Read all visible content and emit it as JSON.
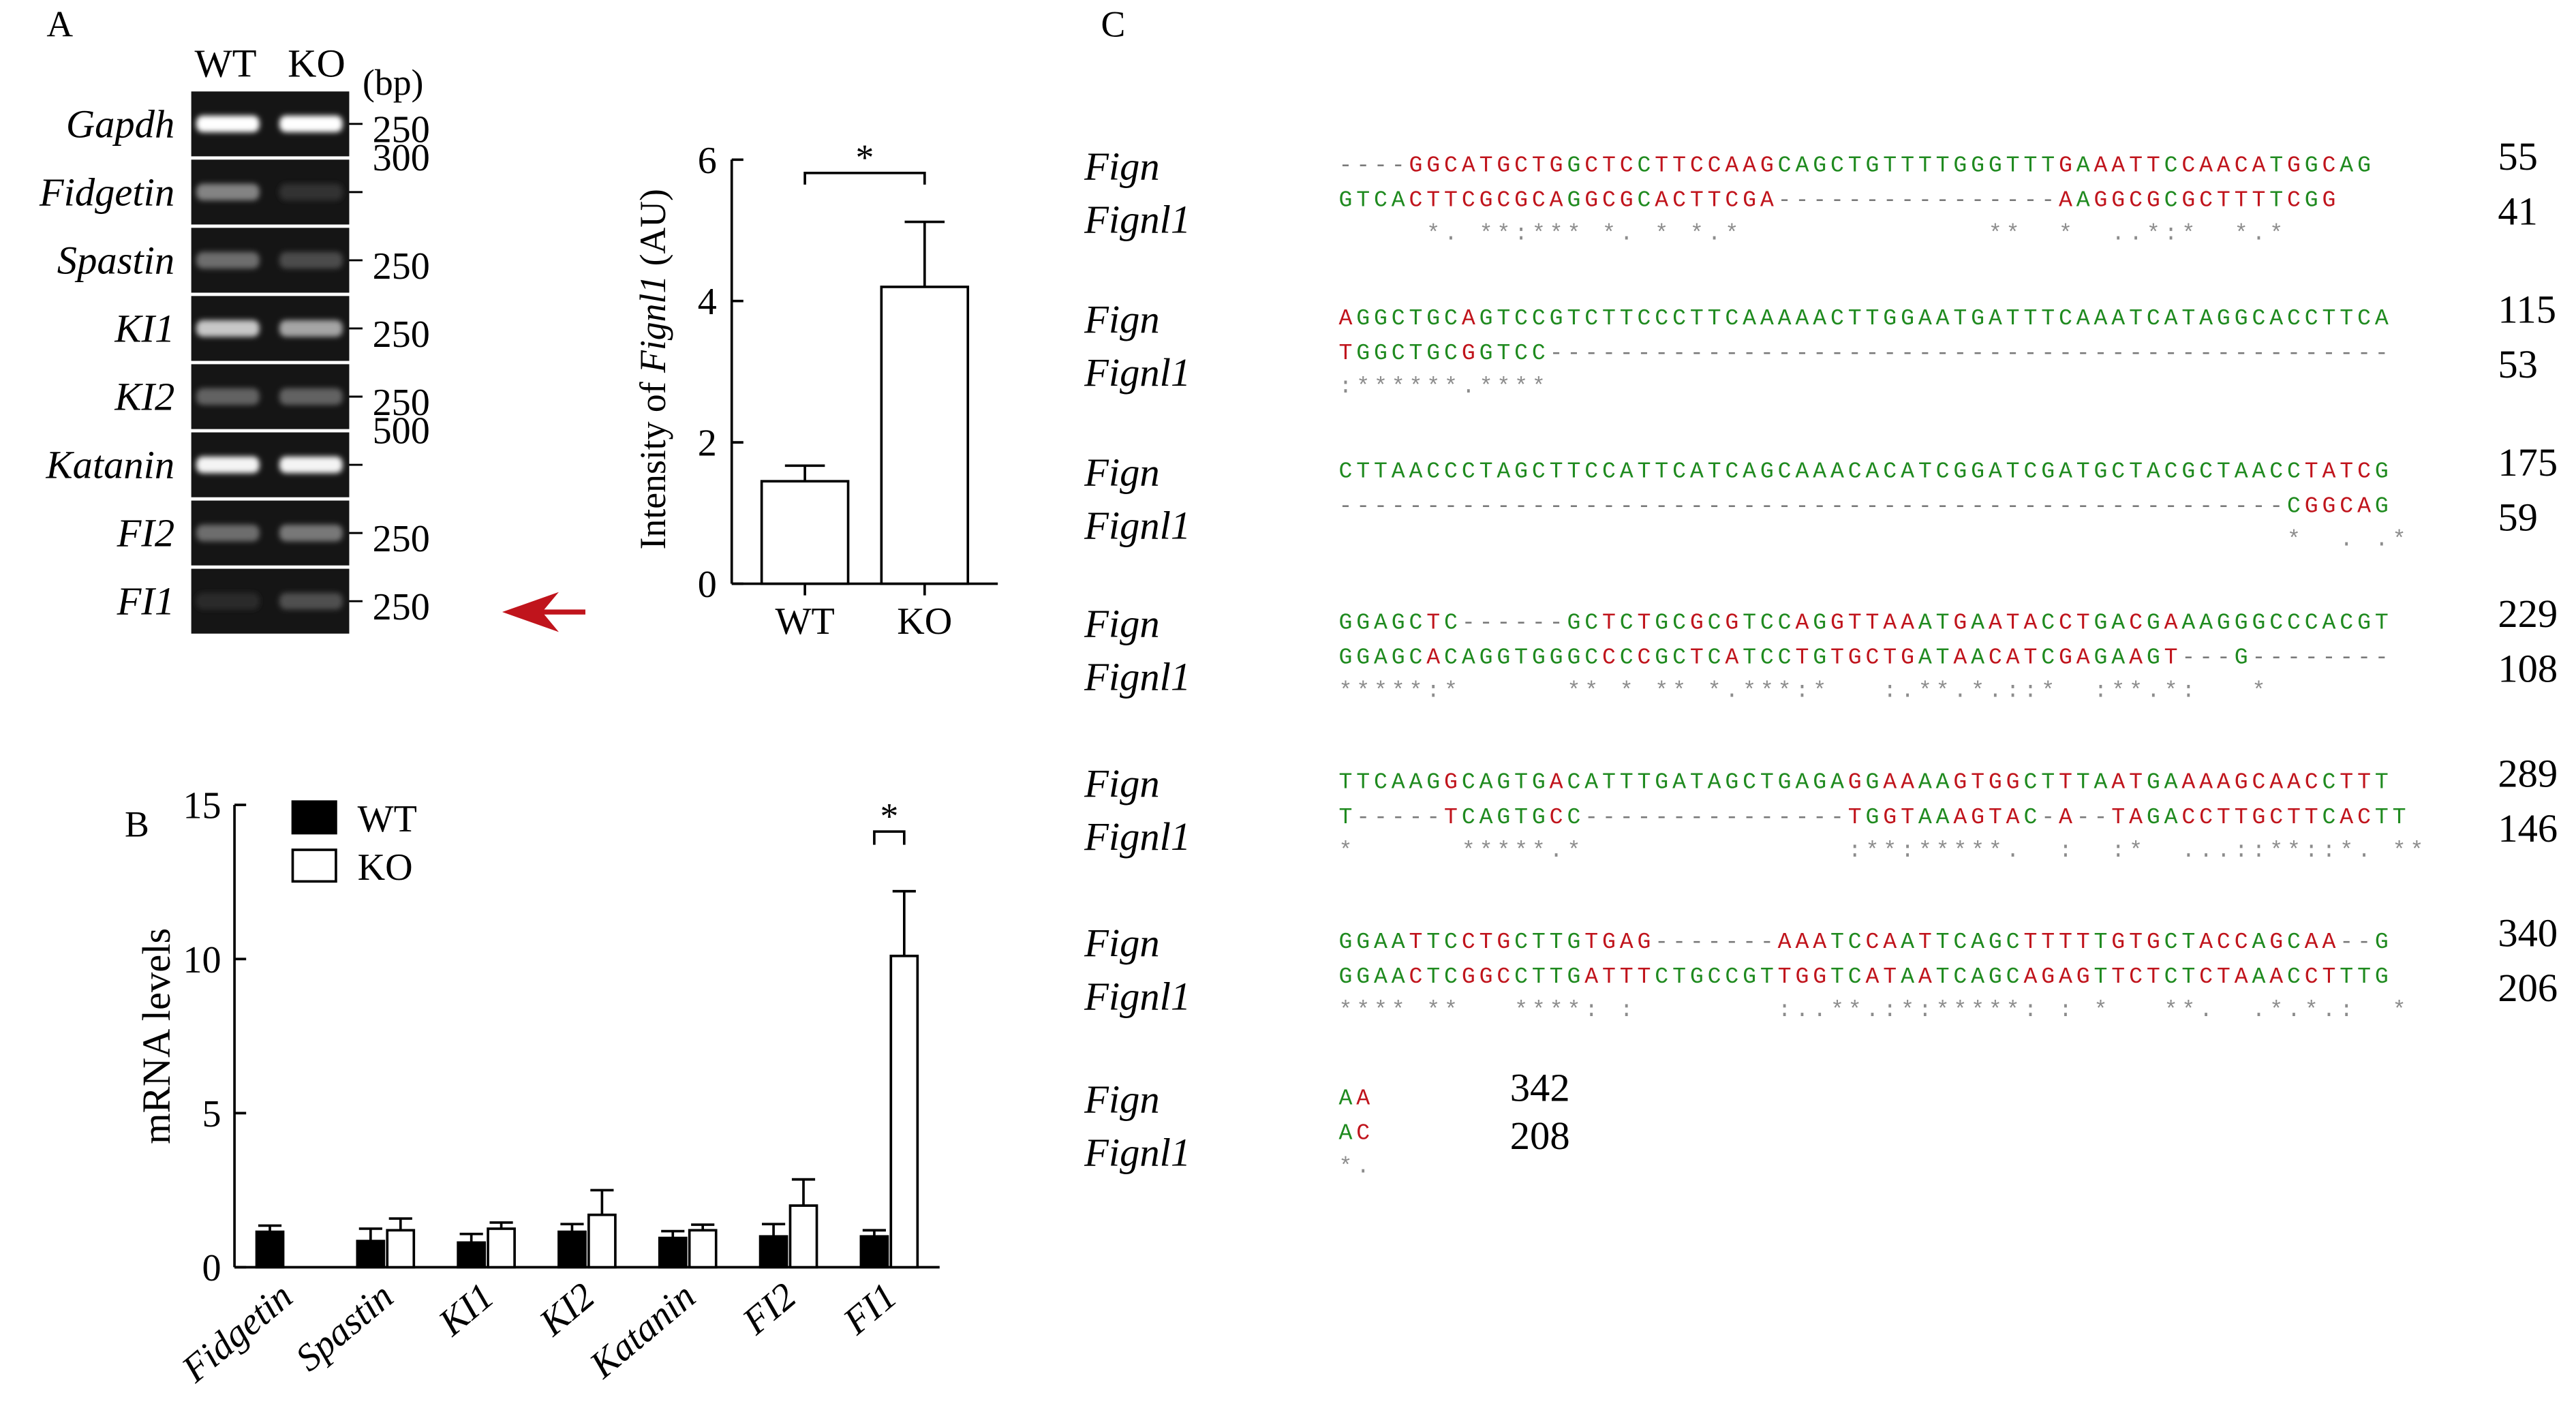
{
  "panels": {
    "a": "A",
    "b": "B",
    "c": "C"
  },
  "gel": {
    "col_labels": [
      "WT",
      "KO"
    ],
    "unit": "(bp)",
    "rows": [
      {
        "gene": "Gapdh",
        "sizes": [
          "250"
        ],
        "wt": 1.0,
        "ko": 1.0
      },
      {
        "gene": "Fidgetin",
        "sizes": [
          "300"
        ],
        "wt": 0.45,
        "ko": 0.08
      },
      {
        "gene": "Spastin",
        "sizes": [
          "250"
        ],
        "wt": 0.35,
        "ko": 0.2
      },
      {
        "gene": "KI1",
        "sizes": [
          "250"
        ],
        "wt": 0.75,
        "ko": 0.6
      },
      {
        "gene": "KI2",
        "sizes": [
          "250"
        ],
        "wt": 0.3,
        "ko": 0.3
      },
      {
        "gene": "Katanin",
        "sizes": [
          "500"
        ],
        "wt": 0.95,
        "ko": 0.95
      },
      {
        "gene": "FI2",
        "sizes": [
          "250"
        ],
        "wt": 0.35,
        "ko": 0.4
      },
      {
        "gene": "FI1",
        "sizes": [
          "250"
        ],
        "wt": 0.05,
        "ko": 0.22
      }
    ]
  },
  "chart_data": [
    {
      "type": "bar",
      "ylabel_prefix": "Intensity of ",
      "ylabel_gene": "Fignl1",
      "ylabel_suffix": " (AU)",
      "categories": [
        "WT",
        "KO"
      ],
      "values": [
        1.45,
        4.2
      ],
      "errors": [
        0.22,
        0.92
      ],
      "yticks": [
        "0",
        "2",
        "4",
        "6"
      ],
      "ylim": [
        0,
        6
      ],
      "significance": "*"
    },
    {
      "type": "bar",
      "ylabel": "mRNA levels",
      "categories": [
        "Fidgetin",
        "Spastin",
        "KI1",
        "KI2",
        "Katanin",
        "FI2",
        "FI1"
      ],
      "series": [
        {
          "name": "WT",
          "values": [
            1.15,
            0.85,
            0.8,
            1.15,
            0.95,
            1.0,
            1.0
          ],
          "errors": [
            0.2,
            0.4,
            0.28,
            0.25,
            0.22,
            0.4,
            0.2
          ]
        },
        {
          "name": "KO",
          "values": [
            0,
            1.2,
            1.25,
            1.7,
            1.2,
            2.0,
            10.1
          ],
          "errors": [
            0,
            0.38,
            0.2,
            0.8,
            0.18,
            0.85,
            2.1
          ]
        }
      ],
      "yticks": [
        "0",
        "5",
        "10",
        "15"
      ],
      "ylim": [
        0,
        15
      ],
      "significance": "*"
    }
  ],
  "alignment": {
    "name1": "Fign",
    "name2": "Fignl1",
    "blocks": [
      {
        "s1": "----GGCATGCTGGCTCCTTCCAAGCAGCTGTTTTGGGTTTGAAATTCCAACATGGCAG",
        "s2": "GTCACTTCGCGCAGGCGCACTTCGA----------------AAGGCGCGCTTTTCGG",
        "cons": "     *. **:*** *. * *.*              **  *  ..*:*  *.*",
        "n1": "55",
        "n2": "41"
      },
      {
        "s1": "AGGCTGCAGTCCGTCTTCCCTTCAAAAACTTGGAATGATTTCAAATCATAGGCACCTTCA",
        "s2": "TGGCTGCGGTCC------------------------------------------------",
        "cons": ":******.****",
        "n1": "115",
        "n2": "53"
      },
      {
        "s1": "CTTAACCCTAGCTTCCATTCATCAGCAAACACATCGGATCGATGCTACGCTAACCTATCG",
        "s2": "------------------------------------------------------CGGCAG",
        "cons": "                                                      *  . .*",
        "n1": "175",
        "n2": "59"
      },
      {
        "s1": "GGAGCTC------GCTCTGCGCGTCCAGGTTAAATGAATACCTGACGAAAGGGCCCACGT",
        "s2": "GGAGCACAGGTGGGCCCCGCTCATCCTGTGCTGATAACATCGAGAAGT---G--------",
        "cons": "*****:*      ** * ** *.***:*   :.**.*.::*  :**.*:   *",
        "n1": "229",
        "n2": "108"
      },
      {
        "s1": "TTCAAGGCAGTGACATTTGATAGCTGAGAGGAAAAGTGGCTTTAATGAAAAGCAACCTTT",
        "s2": "T-----TCAGTGCC---------------TGGTAAAGTAC-A--TAGACCTTGCTTCACTT",
        "cons": "*      *****.*               :**:*****.  :  :*  ...::**::*. **",
        "n1": "289",
        "n2": "146"
      },
      {
        "s1": "GGAATTCCTGCTTGTGAG-------AAATCCAATTCAGCTTTTTGTGCTACCAGCAA--G",
        "s2": "GGAACTCGGCCTTGATTTCTGCCGTTGGTCATAATCAGCAGAGTTCTCTCTAAACCTTTG",
        "cons": "**** **   ****: :        :..**.:*:*****: : *   **.  .*.*.:  *",
        "n1": "340",
        "n2": "206"
      },
      {
        "s1": "AA",
        "s2": "AC",
        "cons": "*.",
        "n1": "342",
        "n2": "208"
      }
    ]
  },
  "colors": {
    "match": "#1f8a1f",
    "mismatch": "#c0141c",
    "consensus": "#8c8c8c",
    "arrow": "#c0141c"
  }
}
